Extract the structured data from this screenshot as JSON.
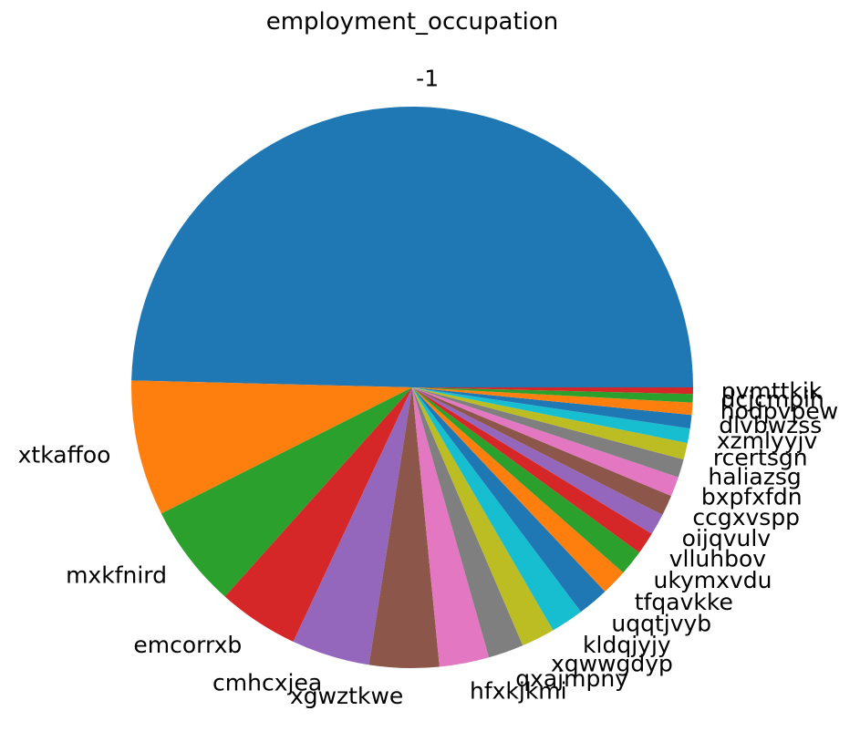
{
  "chart_data": {
    "type": "pie",
    "title": "employment_occupation",
    "start_angle": 0,
    "direction": "counterclockwise",
    "labels": [
      "-1",
      "xtkaffoo",
      "mxkfnird",
      "emcorrxb",
      "cmhcxjea",
      "xgwztkwe",
      "hfxkjkmi",
      "qxajmpny",
      "xqwwgdyp",
      "kldqjyjy",
      "uqqtjvyb",
      "tfqavkke",
      "ukymxvdu",
      "vlluhbov",
      "oijqvulv",
      "ccgxvspp",
      "bxpfxfdn",
      "haliazsg",
      "rcertsgn",
      "xzmlyyjv",
      "dlvbwzss",
      "hodpvpew",
      "dcjcmpih",
      "pvmttkik"
    ],
    "values": [
      50.6,
      7.97,
      6.08,
      4.75,
      4.59,
      4.09,
      2.91,
      2.08,
      1.96,
      1.93,
      1.82,
      1.52,
      1.49,
      1.3,
      1.26,
      1.2,
      1.16,
      1.07,
      0.98,
      0.85,
      0.79,
      0.72,
      0.5,
      0.38
    ],
    "colors": [
      "#1f77b4",
      "#ff7f0e",
      "#2ca02c",
      "#d62728",
      "#9467bd",
      "#8c564b",
      "#e377c2",
      "#7f7f7f",
      "#bcbd22",
      "#17becf"
    ]
  }
}
